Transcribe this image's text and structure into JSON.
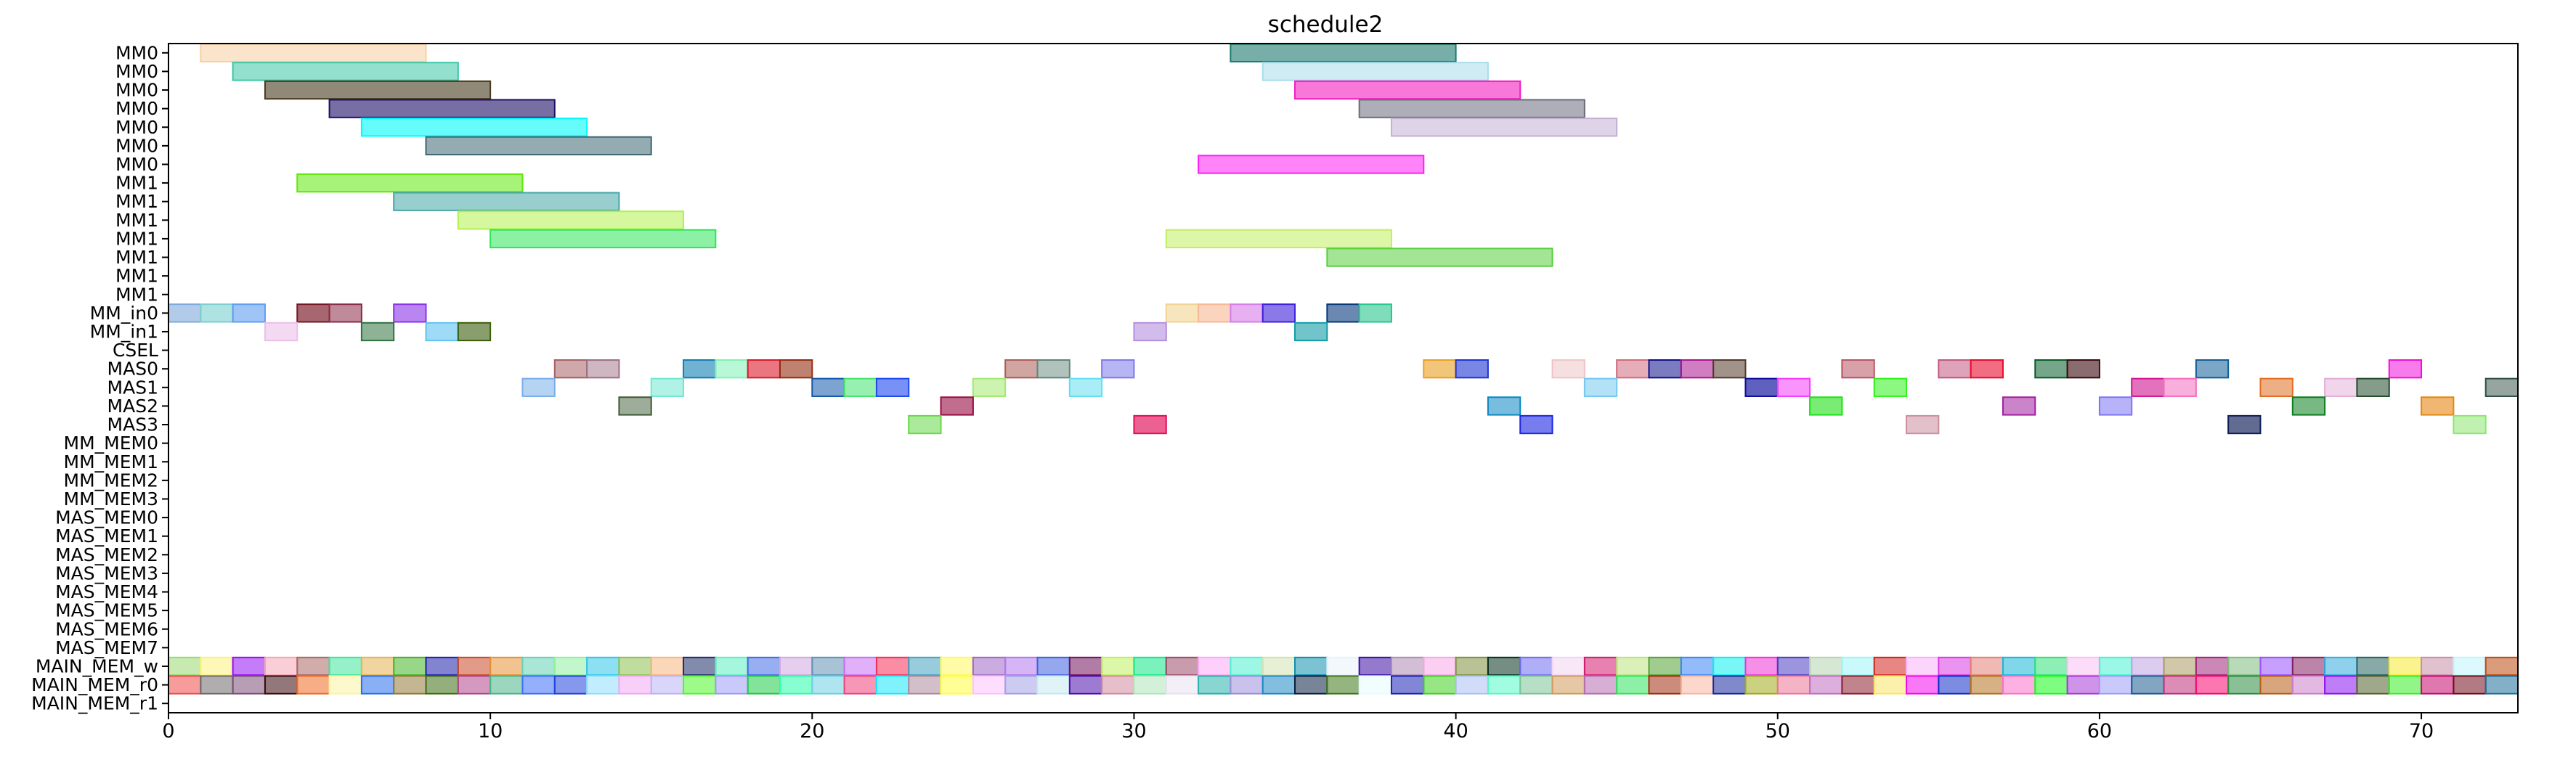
{
  "chart_data": {
    "type": "gantt",
    "title": "schedule2",
    "xlabel": "",
    "ylabel": "",
    "xlim": [
      0,
      73
    ],
    "x_ticks": [
      0,
      10,
      20,
      30,
      40,
      50,
      60,
      70
    ],
    "grid": false,
    "legend": "none",
    "rows": [
      "MM0",
      "MM0",
      "MM0",
      "MM0",
      "MM0",
      "MM0",
      "MM0",
      "MM1",
      "MM1",
      "MM1",
      "MM1",
      "MM1",
      "MM1",
      "MM1",
      "MM_in0",
      "MM_in1",
      "CSEL",
      "MAS0",
      "MAS1",
      "MAS2",
      "MAS3",
      "MM_MEM0",
      "MM_MEM1",
      "MM_MEM2",
      "MM_MEM3",
      "MAS_MEM0",
      "MAS_MEM1",
      "MAS_MEM2",
      "MAS_MEM3",
      "MAS_MEM4",
      "MAS_MEM5",
      "MAS_MEM6",
      "MAS_MEM7",
      "MAIN_MEM_w",
      "MAIN_MEM_r0",
      "MAIN_MEM_r1"
    ],
    "tasks": [
      {
        "row": 0,
        "start": 1,
        "end": 8,
        "color": "#f6cfa3",
        "alpha": 0.55
      },
      {
        "row": 0,
        "start": 33,
        "end": 40,
        "color": "#1c7a6e",
        "alpha": 0.6
      },
      {
        "row": 1,
        "start": 2,
        "end": 9,
        "color": "#3cc6a8",
        "alpha": 0.55
      },
      {
        "row": 1,
        "start": 34,
        "end": 41,
        "color": "#a7ddec",
        "alpha": 0.55
      },
      {
        "row": 2,
        "start": 3,
        "end": 10,
        "color": "#473a1c",
        "alpha": 0.6
      },
      {
        "row": 2,
        "start": 35,
        "end": 42,
        "color": "#f21ec0",
        "alpha": 0.6
      },
      {
        "row": 3,
        "start": 5,
        "end": 12,
        "color": "#1c0f66",
        "alpha": 0.6
      },
      {
        "row": 3,
        "start": 37,
        "end": 44,
        "color": "#6b6b7e",
        "alpha": 0.55
      },
      {
        "row": 4,
        "start": 6,
        "end": 13,
        "color": "#00faf9",
        "alpha": 0.6
      },
      {
        "row": 4,
        "start": 38,
        "end": 45,
        "color": "#c2afd3",
        "alpha": 0.55
      },
      {
        "row": 5,
        "start": 8,
        "end": 15,
        "color": "#3e6672",
        "alpha": 0.55
      },
      {
        "row": 6,
        "start": 32,
        "end": 39,
        "color": "#ff1ff5",
        "alpha": 0.55
      },
      {
        "row": 7,
        "start": 4,
        "end": 11,
        "color": "#5ee80a",
        "alpha": 0.55
      },
      {
        "row": 8,
        "start": 7,
        "end": 14,
        "color": "#46a6a8",
        "alpha": 0.55
      },
      {
        "row": 9,
        "start": 9,
        "end": 16,
        "color": "#b2f04c",
        "alpha": 0.55
      },
      {
        "row": 10,
        "start": 10,
        "end": 17,
        "color": "#2ee55a",
        "alpha": 0.55
      },
      {
        "row": 10,
        "start": 31,
        "end": 38,
        "color": "#c2ee60",
        "alpha": 0.55
      },
      {
        "row": 11,
        "start": 36,
        "end": 43,
        "color": "#58cf3c",
        "alpha": 0.55
      },
      {
        "row": 14,
        "start": 0,
        "end": 1,
        "color": "#7ea9db",
        "alpha": 0.6
      },
      {
        "row": 14,
        "start": 1,
        "end": 2,
        "color": "#7ad0cf",
        "alpha": 0.6
      },
      {
        "row": 14,
        "start": 2,
        "end": 3,
        "color": "#5f9ef2",
        "alpha": 0.6
      },
      {
        "row": 14,
        "start": 4,
        "end": 5,
        "color": "#781623",
        "alpha": 0.65
      },
      {
        "row": 14,
        "start": 5,
        "end": 6,
        "color": "#8a2a46",
        "alpha": 0.55
      },
      {
        "row": 14,
        "start": 7,
        "end": 8,
        "color": "#8a33e8",
        "alpha": 0.6
      },
      {
        "row": 14,
        "start": 31,
        "end": 32,
        "color": "#f1d393",
        "alpha": 0.6
      },
      {
        "row": 14,
        "start": 32,
        "end": 33,
        "color": "#f8b795",
        "alpha": 0.6
      },
      {
        "row": 14,
        "start": 33,
        "end": 34,
        "color": "#d67ce8",
        "alpha": 0.6
      },
      {
        "row": 14,
        "start": 34,
        "end": 35,
        "color": "#3f1fda",
        "alpha": 0.6
      },
      {
        "row": 14,
        "start": 36,
        "end": 37,
        "color": "#06387c",
        "alpha": 0.6
      },
      {
        "row": 14,
        "start": 37,
        "end": 38,
        "color": "#28c68e",
        "alpha": 0.6
      },
      {
        "row": 15,
        "start": 3,
        "end": 4,
        "color": "#ecbfe9",
        "alpha": 0.6
      },
      {
        "row": 15,
        "start": 6,
        "end": 7,
        "color": "#2f7240",
        "alpha": 0.55
      },
      {
        "row": 15,
        "start": 8,
        "end": 9,
        "color": "#5fc2f1",
        "alpha": 0.6
      },
      {
        "row": 15,
        "start": 9,
        "end": 10,
        "color": "#3b5e0a",
        "alpha": 0.6
      },
      {
        "row": 15,
        "start": 30,
        "end": 31,
        "color": "#b38fdd",
        "alpha": 0.6
      },
      {
        "row": 15,
        "start": 35,
        "end": 36,
        "color": "#119da7",
        "alpha": 0.6
      },
      {
        "row": 17,
        "start": 12,
        "end": 13,
        "color": "#a66064",
        "alpha": 0.55
      },
      {
        "row": 17,
        "start": 13,
        "end": 14,
        "color": "#9d7082",
        "alpha": 0.5
      },
      {
        "row": 17,
        "start": 16,
        "end": 17,
        "color": "#0f7fb3",
        "alpha": 0.6
      },
      {
        "row": 17,
        "start": 17,
        "end": 18,
        "color": "#7ef2b6",
        "alpha": 0.55
      },
      {
        "row": 17,
        "start": 18,
        "end": 19,
        "color": "#db1a2c",
        "alpha": 0.6
      },
      {
        "row": 17,
        "start": 19,
        "end": 20,
        "color": "#952d11",
        "alpha": 0.6
      },
      {
        "row": 17,
        "start": 26,
        "end": 27,
        "color": "#ab5c55",
        "alpha": 0.55
      },
      {
        "row": 17,
        "start": 27,
        "end": 28,
        "color": "#5f8677",
        "alpha": 0.5
      },
      {
        "row": 17,
        "start": 29,
        "end": 30,
        "color": "#7e79eb",
        "alpha": 0.55
      },
      {
        "row": 17,
        "start": 39,
        "end": 40,
        "color": "#e9a021",
        "alpha": 0.6
      },
      {
        "row": 17,
        "start": 40,
        "end": 41,
        "color": "#1f35d2",
        "alpha": 0.6
      },
      {
        "row": 17,
        "start": 43,
        "end": 44,
        "color": "#eec4c6",
        "alpha": 0.55
      },
      {
        "row": 17,
        "start": 45,
        "end": 46,
        "color": "#d06a7b",
        "alpha": 0.55
      },
      {
        "row": 17,
        "start": 46,
        "end": 47,
        "color": "#0f0f8b",
        "alpha": 0.55
      },
      {
        "row": 17,
        "start": 47,
        "end": 48,
        "color": "#a9148e",
        "alpha": 0.55
      },
      {
        "row": 17,
        "start": 48,
        "end": 49,
        "color": "#533929",
        "alpha": 0.55
      },
      {
        "row": 17,
        "start": 52,
        "end": 53,
        "color": "#b85364",
        "alpha": 0.55
      },
      {
        "row": 17,
        "start": 55,
        "end": 56,
        "color": "#c2577d",
        "alpha": 0.55
      },
      {
        "row": 17,
        "start": 56,
        "end": 57,
        "color": "#e80c2e",
        "alpha": 0.6
      },
      {
        "row": 17,
        "start": 58,
        "end": 59,
        "color": "#055c2a",
        "alpha": 0.55
      },
      {
        "row": 17,
        "start": 59,
        "end": 60,
        "color": "#3b0a0f",
        "alpha": 0.6
      },
      {
        "row": 17,
        "start": 63,
        "end": 64,
        "color": "#0f5d96",
        "alpha": 0.55
      },
      {
        "row": 17,
        "start": 69,
        "end": 70,
        "color": "#f00fd9",
        "alpha": 0.55
      },
      {
        "row": 18,
        "start": 11,
        "end": 12,
        "color": "#79aeea",
        "alpha": 0.55
      },
      {
        "row": 18,
        "start": 15,
        "end": 16,
        "color": "#6fe8d0",
        "alpha": 0.55
      },
      {
        "row": 18,
        "start": 20,
        "end": 21,
        "color": "#1257ab",
        "alpha": 0.55
      },
      {
        "row": 18,
        "start": 21,
        "end": 22,
        "color": "#43e36f",
        "alpha": 0.55
      },
      {
        "row": 18,
        "start": 22,
        "end": 23,
        "color": "#1d48f0",
        "alpha": 0.6
      },
      {
        "row": 18,
        "start": 25,
        "end": 26,
        "color": "#a2e96e",
        "alpha": 0.55
      },
      {
        "row": 18,
        "start": 28,
        "end": 29,
        "color": "#63def1",
        "alpha": 0.55
      },
      {
        "row": 18,
        "start": 44,
        "end": 45,
        "color": "#75c8ef",
        "alpha": 0.55
      },
      {
        "row": 18,
        "start": 49,
        "end": 50,
        "color": "#0b0a9b",
        "alpha": 0.65
      },
      {
        "row": 18,
        "start": 50,
        "end": 51,
        "color": "#f43cfa",
        "alpha": 0.55
      },
      {
        "row": 18,
        "start": 53,
        "end": 54,
        "color": "#2ef21a",
        "alpha": 0.55
      },
      {
        "row": 18,
        "start": 61,
        "end": 62,
        "color": "#d01490",
        "alpha": 0.6
      },
      {
        "row": 18,
        "start": 62,
        "end": 63,
        "color": "#f36dbd",
        "alpha": 0.55
      },
      {
        "row": 18,
        "start": 65,
        "end": 66,
        "color": "#e06d21",
        "alpha": 0.55
      },
      {
        "row": 18,
        "start": 67,
        "end": 68,
        "color": "#e4acd7",
        "alpha": 0.5
      },
      {
        "row": 18,
        "start": 68,
        "end": 69,
        "color": "#214b2b",
        "alpha": 0.55
      },
      {
        "row": 18,
        "start": 72,
        "end": 73,
        "color": "#2e4c41",
        "alpha": 0.5
      },
      {
        "row": 19,
        "start": 14,
        "end": 15,
        "color": "#3e5a35",
        "alpha": 0.5
      },
      {
        "row": 19,
        "start": 24,
        "end": 25,
        "color": "#980b43",
        "alpha": 0.6
      },
      {
        "row": 19,
        "start": 41,
        "end": 42,
        "color": "#0a87c2",
        "alpha": 0.55
      },
      {
        "row": 19,
        "start": 51,
        "end": 52,
        "color": "#1fe016",
        "alpha": 0.6
      },
      {
        "row": 19,
        "start": 57,
        "end": 58,
        "color": "#a01e9f",
        "alpha": 0.55
      },
      {
        "row": 19,
        "start": 60,
        "end": 61,
        "color": "#7d75f2",
        "alpha": 0.55
      },
      {
        "row": 19,
        "start": 66,
        "end": 67,
        "color": "#097d1d",
        "alpha": 0.55
      },
      {
        "row": 19,
        "start": 70,
        "end": 71,
        "color": "#e48714",
        "alpha": 0.6
      },
      {
        "row": 20,
        "start": 23,
        "end": 24,
        "color": "#67d848",
        "alpha": 0.55
      },
      {
        "row": 20,
        "start": 30,
        "end": 31,
        "color": "#e10e57",
        "alpha": 0.65
      },
      {
        "row": 20,
        "start": 42,
        "end": 43,
        "color": "#1d27e5",
        "alpha": 0.6
      },
      {
        "row": 20,
        "start": 54,
        "end": 55,
        "color": "#cc8e9e",
        "alpha": 0.55
      },
      {
        "row": 20,
        "start": 64,
        "end": 65,
        "color": "#0e1c57",
        "alpha": 0.65
      },
      {
        "row": 20,
        "start": 71,
        "end": 72,
        "color": "#8ce670",
        "alpha": 0.55
      }
    ],
    "memory_rows": {
      "MAIN_MEM_w": [
        "#98d96d",
        "#fbf27d",
        "#9510f2",
        "#f4a6b4",
        "#a96766",
        "#3fe49a",
        "#e6b352",
        "#43b527",
        "#1e1fa8",
        "#c84926",
        "#e49235",
        "#65d2b4",
        "#8ff0a0",
        "#2ec6e8",
        "#8cc151",
        "#f6b67e",
        "#1c2c66",
        "#5cefc1",
        "#416be5",
        "#d2a7e0",
        "#5e92b3",
        "#c670f3",
        "#f52d58",
        "#43a2bf",
        "#fff85d",
        "#9e67c6",
        "#b278ef",
        "#3e5edf",
        "#71115b",
        "#bef05e",
        "#0ee889",
        "#9b4a67",
        "#fca8f5",
        "#4ff0ce",
        "#d3e2b3",
        "#0e8fae",
        "#e8f2f9",
        "#3b0ca4",
        "#ad8bb3",
        "#f7a7e7",
        "#7f8f3c",
        "#052f1f",
        "#6f6cef",
        "#f2d5f0",
        "#d41a6e",
        "#bde37f",
        "#53a334",
        "#3a84f5",
        "#0befee",
        "#ee33d4",
        "#4b3cc0",
        "#b5d3b1",
        "#9cf4f6",
        "#d3231d",
        "#f8b2f9",
        "#d93ae4",
        "#e38074",
        "#17b7d8",
        "#31e176",
        "#f9c0f2",
        "#49f1d1",
        "#c0a2e4",
        "#a99a61",
        "#a0257a",
        "#7ebb7d",
        "#9850ff",
        "#851f60",
        "#33acde",
        "#25635e",
        "#f6ea32",
        "#c88ea6",
        "#bff5fb",
        "#bb4b13"
      ],
      "MAIN_MEM_r0": [
        "#ee4c4b",
        "#6d6a6c",
        "#7c4f78",
        "#3a0a0e",
        "#f06c24",
        "#fcf4a2",
        "#286fec",
        "#937a3b",
        "#3d6d13",
        "#b2468d",
        "#4db488",
        "#3d70fc",
        "#2144dc",
        "#8fdefd",
        "#f3a7f2",
        "#bcb5f5",
        "#4ff72a",
        "#9f9cf7",
        "#1dcc47",
        "#28fea9",
        "#6dcfe2",
        "#ef427c",
        "#18e7fd",
        "#ae8b9c",
        "#ffff40",
        "#fdc2fd",
        "#a3a1e6",
        "#c6e9f1",
        "#4c0fad",
        "#d28a9e",
        "#aee6ba",
        "#e7e1f0",
        "#26b3ab",
        "#9b8fdc",
        "#1e89c5",
        "#0a1f43",
        "#3d7717",
        "#e7fbff",
        "#1a23b6",
        "#41d11f",
        "#acbff3",
        "#55f9c4",
        "#7bc597",
        "#d19a5e",
        "#b76cb1",
        "#31e45d",
        "#a12d0f",
        "#f7b7a3",
        "#17289c",
        "#a0ac17",
        "#ec7698",
        "#c16dc0",
        "#8e1f2d",
        "#f9e568",
        "#f20aec",
        "#0e2ec8",
        "#b5711d",
        "#fb71ca",
        "#16fc1a",
        "#a73ad7",
        "#9c9ef8",
        "#1b5b8e",
        "#c02f78",
        "#f9076e",
        "#2b8d41",
        "#b65d15",
        "#cc7ec9",
        "#8b12f1",
        "#52612d",
        "#39ed24",
        "#c40a6d",
        "#720d1b",
        "#1f6f99"
      ]
    }
  }
}
